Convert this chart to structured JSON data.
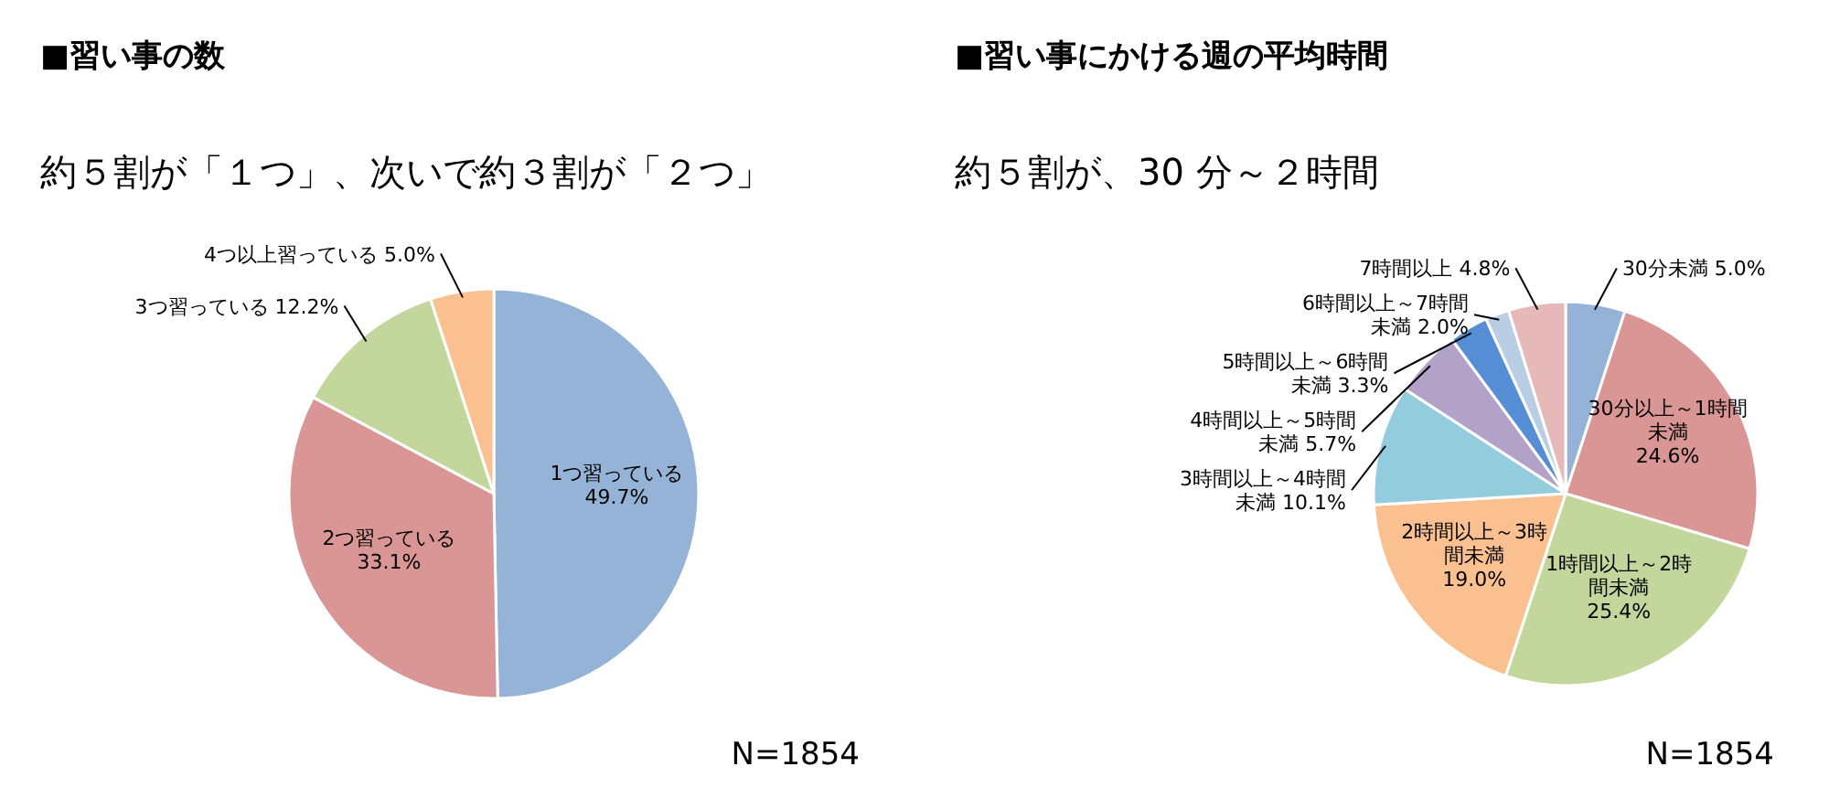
{
  "chart_data": [
    {
      "type": "pie",
      "title": "■習い事の数",
      "subtitle": "約５割が「１つ」、次いで約３割が「２つ」",
      "categories": [
        "1つ習っている",
        "2つ習っている",
        "3つ習っている",
        "4つ以上習っている"
      ],
      "values": [
        49.7,
        33.1,
        12.2,
        5.0
      ],
      "value_labels": [
        "49.7%",
        "33.1%",
        "12.2%",
        "5.0%"
      ],
      "colors": [
        "#95b3d7",
        "#d99694",
        "#c3d69b",
        "#fac090"
      ],
      "annotations": [
        "N=1854"
      ]
    },
    {
      "type": "pie",
      "title": "■習い事にかける週の平均時間",
      "subtitle": "約５割が、30 分～２時間",
      "categories": [
        "30分未満",
        "30分以上～1時間未満",
        "1時間以上～2時間未満",
        "2時間以上～3時間未満",
        "3時間以上～4時間未満",
        "4時間以上～5時間未満",
        "5時間以上～6時間未満",
        "6時間以上～7時間未満",
        "7時間以上"
      ],
      "values": [
        5.0,
        24.6,
        25.4,
        19.0,
        10.1,
        5.7,
        3.3,
        2.0,
        4.8
      ],
      "value_labels": [
        "5.0%",
        "24.6%",
        "25.4%",
        "19.0%",
        "10.1%",
        "5.7%",
        "3.3%",
        "2.0%",
        "4.8%"
      ],
      "colors": [
        "#95b3d7",
        "#d99694",
        "#c3d69b",
        "#fac090",
        "#93cddd",
        "#b3a2c7",
        "#558ed5",
        "#b9cde5",
        "#e6b9b8"
      ],
      "annotations": [
        "N=1854"
      ]
    }
  ]
}
